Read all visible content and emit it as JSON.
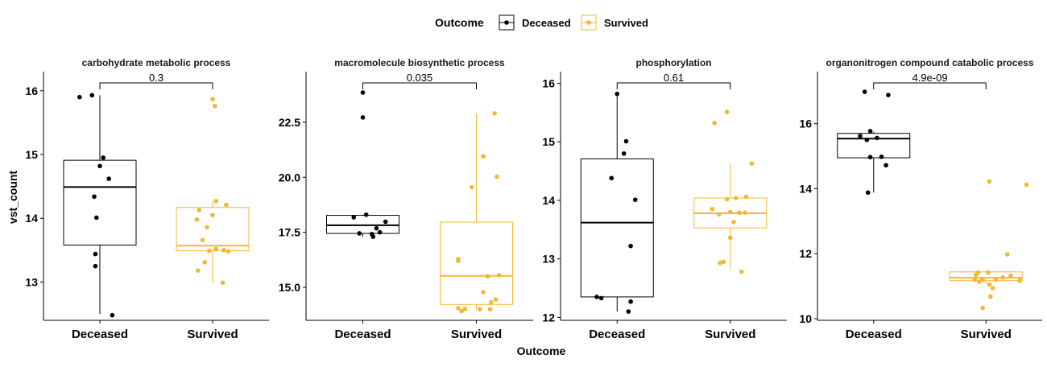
{
  "legend": {
    "title": "Outcome",
    "items": [
      {
        "label": "Deceased",
        "color": "#000000"
      },
      {
        "label": "Survived",
        "color": "#F2B830"
      }
    ]
  },
  "y_axis_title": "vst_count",
  "x_axis_title": "Outcome",
  "chart_data": [
    {
      "type": "box",
      "title": "carbohydrate metabolic process",
      "categories": [
        "Deceased",
        "Survived"
      ],
      "ylim": [
        12.4,
        16.3
      ],
      "yticks": [
        13,
        14,
        15,
        16
      ],
      "pvalue": "0.3",
      "series": [
        {
          "name": "Deceased",
          "box": {
            "q1": 13.58,
            "median": 14.49,
            "q3": 14.91,
            "whisker_low": 12.5,
            "whisker_high": 15.93
          },
          "points": [
            [
              -0.18,
              15.9
            ],
            [
              -0.07,
              15.93
            ],
            [
              0.03,
              14.95
            ],
            [
              0.0,
              14.82
            ],
            [
              0.08,
              14.62
            ],
            [
              -0.05,
              14.34
            ],
            [
              -0.03,
              14.01
            ],
            [
              -0.04,
              13.44
            ],
            [
              -0.04,
              13.25
            ],
            [
              0.11,
              12.48
            ]
          ]
        },
        {
          "name": "Survived",
          "box": {
            "q1": 13.49,
            "median": 13.57,
            "q3": 14.17,
            "whisker_low": 12.99,
            "whisker_high": 14.27
          },
          "points": [
            [
              -0.12,
              14.13
            ],
            [
              0.03,
              14.27
            ],
            [
              0.12,
              14.21
            ],
            [
              0.0,
              14.05
            ],
            [
              -0.14,
              13.98
            ],
            [
              -0.05,
              13.86
            ],
            [
              -0.09,
              13.66
            ],
            [
              0.03,
              13.52
            ],
            [
              0.1,
              13.5
            ],
            [
              -0.03,
              13.49
            ],
            [
              0.14,
              13.48
            ],
            [
              -0.07,
              13.31
            ],
            [
              -0.13,
              13.18
            ],
            [
              0.09,
              12.99
            ],
            [
              0.0,
              15.87
            ],
            [
              0.02,
              15.76
            ]
          ]
        }
      ]
    },
    {
      "type": "box",
      "title": "macromolecule biosynthetic process",
      "categories": [
        "Deceased",
        "Survived"
      ],
      "ylim": [
        13.5,
        24.8
      ],
      "yticks": [
        15.0,
        17.5,
        20.0,
        22.5
      ],
      "ytick_labels": [
        "15.0",
        "17.5",
        "20.0",
        "22.5"
      ],
      "pvalue": "0.035",
      "series": [
        {
          "name": "Deceased",
          "box": {
            "q1": 17.45,
            "median": 17.82,
            "q3": 18.27,
            "whisker_low": 17.3,
            "whisker_high": 18.3
          },
          "points": [
            [
              0.0,
              23.85
            ],
            [
              0.0,
              22.72
            ],
            [
              -0.08,
              18.18
            ],
            [
              0.03,
              18.3
            ],
            [
              0.2,
              17.98
            ],
            [
              0.12,
              17.68
            ],
            [
              0.15,
              17.5
            ],
            [
              -0.03,
              17.45
            ],
            [
              0.08,
              17.42
            ],
            [
              0.09,
              17.3
            ]
          ]
        },
        {
          "name": "Survived",
          "box": {
            "q1": 14.22,
            "median": 15.52,
            "q3": 17.96,
            "whisker_low": 14.0,
            "whisker_high": 22.9
          },
          "points": [
            [
              0.16,
              22.9
            ],
            [
              0.06,
              20.95
            ],
            [
              0.18,
              20.03
            ],
            [
              -0.04,
              19.55
            ],
            [
              -0.16,
              16.28
            ],
            [
              -0.16,
              16.2
            ],
            [
              0.2,
              15.55
            ],
            [
              0.1,
              15.5
            ],
            [
              0.06,
              14.78
            ],
            [
              0.17,
              14.45
            ],
            [
              0.13,
              14.32
            ],
            [
              -0.16,
              14.05
            ],
            [
              -0.1,
              14.02
            ],
            [
              0.03,
              14.0
            ],
            [
              0.12,
              14.0
            ],
            [
              -0.13,
              13.92
            ]
          ]
        }
      ]
    },
    {
      "type": "box",
      "title": "phosphorylation",
      "categories": [
        "Deceased",
        "Survived"
      ],
      "ylim": [
        11.95,
        16.2
      ],
      "yticks": [
        12,
        13,
        14,
        15,
        16
      ],
      "pvalue": "0.61",
      "series": [
        {
          "name": "Deceased",
          "box": {
            "q1": 12.35,
            "median": 13.62,
            "q3": 14.71,
            "whisker_low": 12.1,
            "whisker_high": 15.82
          },
          "points": [
            [
              0.0,
              15.82
            ],
            [
              0.08,
              15.01
            ],
            [
              0.06,
              14.8
            ],
            [
              -0.05,
              14.38
            ],
            [
              0.16,
              14.01
            ],
            [
              0.12,
              13.22
            ],
            [
              -0.18,
              12.35
            ],
            [
              -0.14,
              12.33
            ],
            [
              0.12,
              12.27
            ],
            [
              0.1,
              12.1
            ]
          ]
        },
        {
          "name": "Survived",
          "box": {
            "q1": 13.53,
            "median": 13.78,
            "q3": 14.04,
            "whisker_low": 12.8,
            "whisker_high": 14.62
          },
          "points": [
            [
              -0.14,
              15.32
            ],
            [
              -0.03,
              15.51
            ],
            [
              0.19,
              14.63
            ],
            [
              0.14,
              14.06
            ],
            [
              -0.03,
              14.02
            ],
            [
              0.05,
              14.04
            ],
            [
              -0.16,
              13.85
            ],
            [
              0.0,
              13.8
            ],
            [
              0.08,
              13.79
            ],
            [
              0.13,
              13.79
            ],
            [
              -0.1,
              13.76
            ],
            [
              0.03,
              13.63
            ],
            [
              0.0,
              13.36
            ],
            [
              -0.06,
              12.95
            ],
            [
              -0.09,
              12.93
            ],
            [
              0.1,
              12.78
            ]
          ]
        }
      ]
    },
    {
      "type": "box",
      "title": "organonitrogen compound catabolic process",
      "categories": [
        "Deceased",
        "Survived"
      ],
      "ylim": [
        9.95,
        17.6
      ],
      "yticks": [
        10,
        12,
        14,
        16
      ],
      "pvalue": "4.9e-09",
      "series": [
        {
          "name": "Deceased",
          "box": {
            "q1": 14.95,
            "median": 15.54,
            "q3": 15.7,
            "whisker_low": 13.88,
            "whisker_high": 15.75
          },
          "points": [
            [
              -0.08,
              16.98
            ],
            [
              0.13,
              16.88
            ],
            [
              -0.03,
              15.77
            ],
            [
              -0.12,
              15.62
            ],
            [
              0.03,
              15.56
            ],
            [
              -0.06,
              15.5
            ],
            [
              -0.03,
              14.97
            ],
            [
              0.07,
              14.98
            ],
            [
              0.11,
              14.72
            ],
            [
              -0.05,
              13.88
            ]
          ]
        },
        {
          "name": "Survived",
          "box": {
            "q1": 11.17,
            "median": 11.26,
            "q3": 11.44,
            "whisker_low": 11.1,
            "whisker_high": 11.47
          },
          "points": [
            [
              0.03,
              14.22
            ],
            [
              0.36,
              14.12
            ],
            [
              0.19,
              11.98
            ],
            [
              -0.07,
              11.42
            ],
            [
              0.02,
              11.42
            ],
            [
              -0.09,
              11.35
            ],
            [
              0.22,
              11.32
            ],
            [
              0.15,
              11.27
            ],
            [
              -0.1,
              11.2
            ],
            [
              0.09,
              11.2
            ],
            [
              -0.03,
              11.2
            ],
            [
              0.3,
              11.17
            ],
            [
              -0.06,
              11.14
            ],
            [
              0.03,
              11.05
            ],
            [
              0.06,
              10.94
            ],
            [
              0.04,
              10.68
            ],
            [
              -0.03,
              10.33
            ]
          ]
        }
      ]
    }
  ]
}
